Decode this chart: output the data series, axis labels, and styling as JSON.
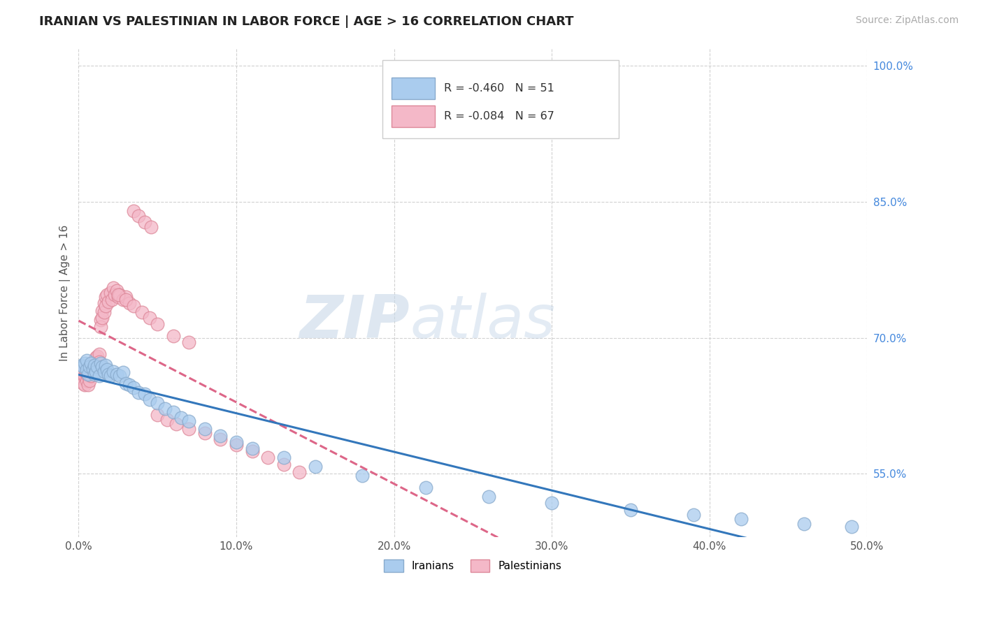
{
  "title": "IRANIAN VS PALESTINIAN IN LABOR FORCE | AGE > 16 CORRELATION CHART",
  "source_text": "Source: ZipAtlas.com",
  "ylabel": "In Labor Force | Age > 16",
  "xlim": [
    0.0,
    0.5
  ],
  "ylim": [
    0.48,
    1.02
  ],
  "xticks": [
    0.0,
    0.1,
    0.2,
    0.3,
    0.4,
    0.5
  ],
  "xtick_labels": [
    "0.0%",
    "10.0%",
    "20.0%",
    "30.0%",
    "40.0%",
    "50.0%"
  ],
  "yticks": [
    0.55,
    0.7,
    0.85,
    1.0
  ],
  "ytick_labels": [
    "55.0%",
    "70.0%",
    "85.0%",
    "100.0%"
  ],
  "iranians_color": "#aaccee",
  "iranians_edge_color": "#88aacc",
  "palestinians_color": "#f4b8c8",
  "palestinians_edge_color": "#dd8899",
  "blue_line_color": "#3377bb",
  "pink_line_color": "#dd6688",
  "R_iranians": -0.46,
  "N_iranians": 51,
  "R_palestinians": -0.084,
  "N_palestinians": 67,
  "legend_label_iranians": "Iranians",
  "legend_label_palestinians": "Palestinians",
  "watermark_zip": "ZIP",
  "watermark_atlas": "atlas",
  "background_color": "#ffffff",
  "grid_color": "#cccccc",
  "iranians_x": [
    0.002,
    0.003,
    0.004,
    0.005,
    0.005,
    0.006,
    0.007,
    0.008,
    0.009,
    0.01,
    0.01,
    0.011,
    0.012,
    0.013,
    0.014,
    0.015,
    0.016,
    0.017,
    0.018,
    0.019,
    0.02,
    0.022,
    0.024,
    0.026,
    0.028,
    0.03,
    0.032,
    0.035,
    0.038,
    0.042,
    0.045,
    0.05,
    0.055,
    0.06,
    0.065,
    0.07,
    0.08,
    0.09,
    0.1,
    0.11,
    0.13,
    0.15,
    0.18,
    0.22,
    0.26,
    0.3,
    0.35,
    0.39,
    0.42,
    0.46,
    0.49
  ],
  "iranians_y": [
    0.67,
    0.668,
    0.672,
    0.665,
    0.675,
    0.66,
    0.668,
    0.672,
    0.665,
    0.66,
    0.67,
    0.663,
    0.668,
    0.658,
    0.672,
    0.668,
    0.663,
    0.67,
    0.665,
    0.66,
    0.658,
    0.663,
    0.66,
    0.658,
    0.662,
    0.65,
    0.648,
    0.645,
    0.64,
    0.638,
    0.632,
    0.628,
    0.622,
    0.618,
    0.612,
    0.608,
    0.6,
    0.592,
    0.585,
    0.578,
    0.568,
    0.558,
    0.548,
    0.535,
    0.525,
    0.518,
    0.51,
    0.505,
    0.5,
    0.495,
    0.492
  ],
  "palestinians_x": [
    0.001,
    0.002,
    0.003,
    0.003,
    0.004,
    0.004,
    0.005,
    0.005,
    0.006,
    0.006,
    0.007,
    0.007,
    0.008,
    0.008,
    0.009,
    0.009,
    0.01,
    0.01,
    0.011,
    0.011,
    0.012,
    0.012,
    0.013,
    0.013,
    0.014,
    0.014,
    0.015,
    0.015,
    0.016,
    0.016,
    0.017,
    0.017,
    0.018,
    0.019,
    0.02,
    0.021,
    0.022,
    0.023,
    0.024,
    0.025,
    0.026,
    0.028,
    0.03,
    0.032,
    0.035,
    0.038,
    0.042,
    0.046,
    0.05,
    0.056,
    0.062,
    0.07,
    0.08,
    0.09,
    0.1,
    0.11,
    0.12,
    0.13,
    0.14,
    0.025,
    0.03,
    0.035,
    0.04,
    0.045,
    0.05,
    0.06,
    0.07
  ],
  "palestinians_y": [
    0.66,
    0.655,
    0.66,
    0.65,
    0.658,
    0.648,
    0.66,
    0.653,
    0.658,
    0.648,
    0.66,
    0.653,
    0.668,
    0.658,
    0.673,
    0.663,
    0.675,
    0.668,
    0.678,
    0.67,
    0.68,
    0.672,
    0.682,
    0.674,
    0.72,
    0.712,
    0.73,
    0.722,
    0.738,
    0.728,
    0.745,
    0.735,
    0.748,
    0.74,
    0.75,
    0.742,
    0.755,
    0.748,
    0.752,
    0.745,
    0.748,
    0.742,
    0.745,
    0.738,
    0.84,
    0.835,
    0.828,
    0.822,
    0.615,
    0.61,
    0.605,
    0.6,
    0.595,
    0.588,
    0.582,
    0.575,
    0.568,
    0.56,
    0.552,
    0.748,
    0.742,
    0.735,
    0.728,
    0.722,
    0.715,
    0.702,
    0.695
  ]
}
